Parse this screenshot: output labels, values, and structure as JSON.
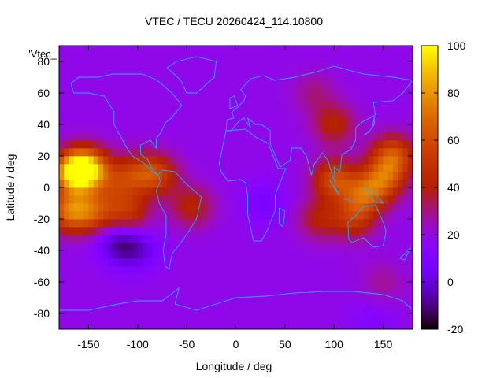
{
  "chart_data": {
    "type": "heatmap",
    "title": "VTEC / TECU 20260424_114.10800",
    "xlabel": "Longitude / deg",
    "ylabel": "Latitude / deg",
    "legend_key": "'Vtec_",
    "xlim": [
      -180,
      180
    ],
    "ylim": [
      -90,
      90
    ],
    "x_ticks": [
      -150,
      -100,
      -50,
      0,
      50,
      100,
      150
    ],
    "y_ticks": [
      -80,
      -60,
      -40,
      -20,
      0,
      20,
      40,
      60,
      80
    ],
    "colorbar": {
      "range": [
        -20,
        100
      ],
      "ticks": [
        -20,
        0,
        20,
        40,
        60,
        80,
        100
      ]
    },
    "background_value": 18,
    "features": [
      {
        "lon": -165,
        "lat": 10,
        "value": 88
      },
      {
        "lon": -150,
        "lat": 12,
        "value": 75
      },
      {
        "lon": -170,
        "lat": -15,
        "value": 65
      },
      {
        "lon": -145,
        "lat": -15,
        "value": 55
      },
      {
        "lon": -110,
        "lat": -16,
        "value": 48
      },
      {
        "lon": -80,
        "lat": 8,
        "value": 50
      },
      {
        "lon": -100,
        "lat": 10,
        "value": 42
      },
      {
        "lon": -120,
        "lat": 2,
        "value": 40
      },
      {
        "lon": -45,
        "lat": -12,
        "value": 42
      },
      {
        "lon": 30,
        "lat": -10,
        "value": 8
      },
      {
        "lon": -120,
        "lat": -35,
        "value": -5
      },
      {
        "lon": -100,
        "lat": -40,
        "value": 2
      },
      {
        "lon": 100,
        "lat": 5,
        "value": 58
      },
      {
        "lon": 160,
        "lat": 20,
        "value": 62
      },
      {
        "lon": 130,
        "lat": -5,
        "value": 56
      },
      {
        "lon": 150,
        "lat": 5,
        "value": 58
      },
      {
        "lon": 100,
        "lat": 40,
        "value": 42
      },
      {
        "lon": 120,
        "lat": -20,
        "value": 45
      },
      {
        "lon": 85,
        "lat": -20,
        "value": 40
      },
      {
        "lon": 80,
        "lat": 60,
        "value": 30
      },
      {
        "lon": 150,
        "lat": -60,
        "value": 28
      },
      {
        "lon": 140,
        "lat": -85,
        "value": 12
      }
    ]
  }
}
